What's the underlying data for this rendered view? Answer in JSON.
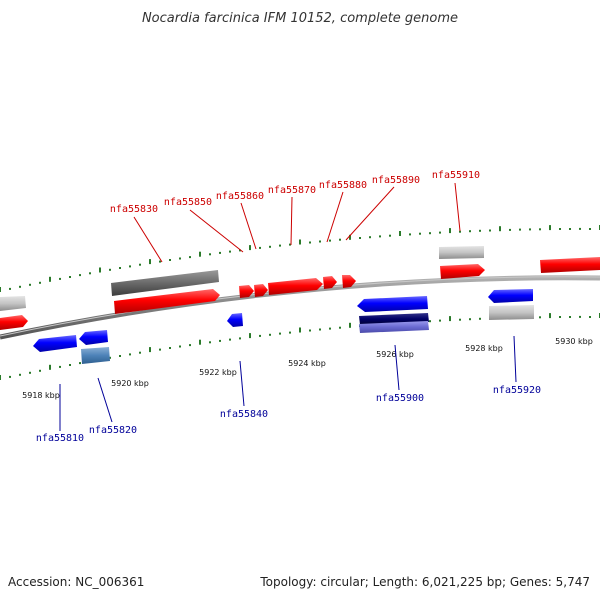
{
  "title": "Nocardia farcinica IFM 10152, complete genome",
  "footer": {
    "accession": "Accession: NC_006361",
    "summary": "Topology: circular; Length: 6,021,225 bp; Genes: 5,747"
  },
  "colors": {
    "forward_gene": "#ff0000",
    "reverse_gene": "#0000ff",
    "forward_label": "#cc0000",
    "reverse_label": "#000099",
    "tick": "#2a7a2a",
    "axis": "#777777",
    "pseudo": "#bbbbbb"
  },
  "tick_labels": [
    "5918 kbp",
    "5920 kbp",
    "5922 kbp",
    "5924 kbp",
    "5926 kbp",
    "5928 kbp",
    "5930 kbp"
  ],
  "forward_gene_labels": [
    "nfa55830",
    "nfa55850",
    "nfa55860",
    "nfa55870",
    "nfa55880",
    "nfa55890",
    "nfa55910"
  ],
  "reverse_gene_labels": [
    "nfa55810",
    "nfa55820",
    "nfa55840",
    "nfa55900",
    "nfa55920"
  ]
}
